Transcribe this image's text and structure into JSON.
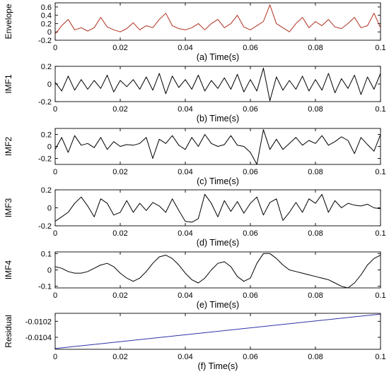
{
  "chart_data": [
    {
      "type": "line",
      "panel": "a",
      "caption": "(a) Time(s)",
      "ylabel": "Envelope",
      "xlim": [
        0,
        0.1
      ],
      "ylim": [
        -0.2,
        0.7
      ],
      "xticks": [
        0,
        0.02,
        0.04,
        0.06,
        0.08,
        0.1
      ],
      "xtick_labels": [
        "0",
        "0.02",
        "0.04",
        "0.06",
        "0.08",
        "0.1"
      ],
      "yticks": [
        -0.2,
        0,
        0.2,
        0.4,
        0.6
      ],
      "ytick_labels": [
        "-0.2",
        "0",
        "0.2",
        "0.4",
        "0.6"
      ],
      "line_color": "#b03020",
      "series": [
        {
          "x": [
            0,
            0.002,
            0.004,
            0.006,
            0.008,
            0.01,
            0.012,
            0.014,
            0.016,
            0.018,
            0.02,
            0.022,
            0.024,
            0.026,
            0.028,
            0.03,
            0.032,
            0.034,
            0.036,
            0.038,
            0.04,
            0.042,
            0.044,
            0.046,
            0.048,
            0.05,
            0.052,
            0.054,
            0.056,
            0.058,
            0.06,
            0.062,
            0.064,
            0.066,
            0.068,
            0.07,
            0.072,
            0.074,
            0.076,
            0.078,
            0.08,
            0.082,
            0.084,
            0.086,
            0.088,
            0.09,
            0.092,
            0.094,
            0.096,
            0.098,
            0.1
          ],
          "y": [
            -0.05,
            0.15,
            0.3,
            0.05,
            0.1,
            0.02,
            0.1,
            0.35,
            0.12,
            0.05,
            0.0,
            0.08,
            0.22,
            0.05,
            0.15,
            0.1,
            0.3,
            0.45,
            0.15,
            0.08,
            0.05,
            0.1,
            0.2,
            0.05,
            0.2,
            0.3,
            0.1,
            0.2,
            0.4,
            0.12,
            0.05,
            0.15,
            0.25,
            0.65,
            0.2,
            0.1,
            0.0,
            0.2,
            0.35,
            0.1,
            0.25,
            0.15,
            0.3,
            0.12,
            0.08,
            0.2,
            0.35,
            0.1,
            0.15,
            0.45,
            0.1
          ]
        }
      ]
    },
    {
      "type": "line",
      "panel": "b",
      "caption": "(b) Time(s)",
      "ylabel": "IMF1",
      "xlim": [
        0,
        0.1
      ],
      "ylim": [
        -0.2,
        0.2
      ],
      "xticks": [
        0,
        0.02,
        0.04,
        0.06,
        0.08,
        0.1
      ],
      "xtick_labels": [
        "0",
        "0.02",
        "0.04",
        "0.06",
        "0.08",
        "0.1"
      ],
      "yticks": [
        -0.2,
        0,
        0.2
      ],
      "ytick_labels": [
        "-0.2",
        "0",
        "0.2"
      ],
      "line_color": "#000000",
      "series": [
        {
          "x": [
            0,
            0.002,
            0.004,
            0.006,
            0.008,
            0.01,
            0.012,
            0.014,
            0.016,
            0.018,
            0.02,
            0.022,
            0.024,
            0.026,
            0.028,
            0.03,
            0.032,
            0.034,
            0.036,
            0.038,
            0.04,
            0.042,
            0.044,
            0.046,
            0.048,
            0.05,
            0.052,
            0.054,
            0.056,
            0.058,
            0.06,
            0.062,
            0.064,
            0.066,
            0.068,
            0.07,
            0.072,
            0.074,
            0.076,
            0.078,
            0.08,
            0.082,
            0.084,
            0.086,
            0.088,
            0.09,
            0.092,
            0.094,
            0.096,
            0.098,
            0.1
          ],
          "y": [
            0.02,
            -0.08,
            0.09,
            -0.07,
            0.05,
            -0.06,
            0.04,
            -0.05,
            0.1,
            -0.09,
            0.04,
            -0.03,
            0.05,
            -0.06,
            0.08,
            -0.07,
            0.12,
            -0.11,
            0.09,
            -0.04,
            0.05,
            -0.06,
            0.1,
            -0.08,
            0.04,
            -0.05,
            0.07,
            -0.06,
            0.11,
            -0.09,
            0.05,
            -0.08,
            0.18,
            -0.19,
            0.08,
            -0.07,
            0.04,
            -0.06,
            0.09,
            -0.08,
            0.05,
            -0.07,
            0.12,
            -0.1,
            0.06,
            -0.05,
            0.1,
            -0.12,
            0.08,
            -0.06,
            0.12
          ]
        }
      ]
    },
    {
      "type": "line",
      "panel": "c",
      "caption": "(c) Time(s)",
      "ylabel": "IMF2",
      "xlim": [
        0,
        0.1
      ],
      "ylim": [
        -0.3,
        0.3
      ],
      "xticks": [
        0,
        0.02,
        0.04,
        0.06,
        0.08,
        0.1
      ],
      "xtick_labels": [
        "0",
        "0.02",
        "0.04",
        "0.06",
        "0.08",
        "0.1"
      ],
      "yticks": [
        -0.2,
        0,
        0.2
      ],
      "ytick_labels": [
        "-0.2",
        "0",
        "0.2"
      ],
      "line_color": "#000000",
      "series": [
        {
          "x": [
            0,
            0.002,
            0.004,
            0.006,
            0.008,
            0.01,
            0.012,
            0.014,
            0.016,
            0.018,
            0.02,
            0.022,
            0.024,
            0.026,
            0.028,
            0.03,
            0.032,
            0.034,
            0.036,
            0.038,
            0.04,
            0.042,
            0.044,
            0.046,
            0.048,
            0.05,
            0.052,
            0.054,
            0.056,
            0.058,
            0.06,
            0.062,
            0.064,
            0.066,
            0.068,
            0.07,
            0.072,
            0.074,
            0.076,
            0.078,
            0.08,
            0.082,
            0.084,
            0.086,
            0.088,
            0.09,
            0.092,
            0.094,
            0.096,
            0.098,
            0.1
          ],
          "y": [
            -0.05,
            0.15,
            -0.1,
            0.18,
            0.02,
            0.05,
            -0.02,
            0.15,
            -0.05,
            0.08,
            0.0,
            0.03,
            0.02,
            0.05,
            0.15,
            -0.2,
            0.12,
            0.05,
            0.18,
            0.02,
            -0.05,
            0.15,
            0.0,
            0.2,
            0.05,
            0.0,
            0.03,
            0.18,
            0.02,
            0.0,
            -0.1,
            -0.3,
            0.28,
            -0.05,
            0.12,
            -0.05,
            0.05,
            0.15,
            0.02,
            0.1,
            0.05,
            0.18,
            0.02,
            0.08,
            0.16,
            0.1,
            -0.12,
            0.15,
            0.03,
            -0.08,
            0.2
          ]
        }
      ]
    },
    {
      "type": "line",
      "panel": "d",
      "caption": "(d) Time(s)",
      "ylabel": "IMF3",
      "xlim": [
        0,
        0.1
      ],
      "ylim": [
        -0.2,
        0.2
      ],
      "xticks": [
        0,
        0.02,
        0.04,
        0.06,
        0.08,
        0.1
      ],
      "xtick_labels": [
        "0",
        "0.02",
        "0.04",
        "0.06",
        "0.08",
        "0.1"
      ],
      "yticks": [
        -0.2,
        0,
        0.2
      ],
      "ytick_labels": [
        "-0.2",
        "0",
        "0.2"
      ],
      "line_color": "#000000",
      "series": [
        {
          "x": [
            0,
            0.002,
            0.004,
            0.006,
            0.008,
            0.01,
            0.012,
            0.014,
            0.016,
            0.018,
            0.02,
            0.022,
            0.024,
            0.026,
            0.028,
            0.03,
            0.032,
            0.034,
            0.036,
            0.038,
            0.04,
            0.042,
            0.044,
            0.046,
            0.048,
            0.05,
            0.052,
            0.054,
            0.056,
            0.058,
            0.06,
            0.062,
            0.064,
            0.066,
            0.068,
            0.07,
            0.072,
            0.074,
            0.076,
            0.078,
            0.08,
            0.082,
            0.084,
            0.086,
            0.088,
            0.09,
            0.092,
            0.094,
            0.096,
            0.098,
            0.1
          ],
          "y": [
            -0.15,
            -0.1,
            -0.05,
            0.05,
            0.12,
            0.02,
            -0.1,
            0.1,
            0.05,
            -0.08,
            -0.05,
            0.08,
            -0.05,
            0.05,
            -0.03,
            0.06,
            0.02,
            -0.05,
            0.1,
            -0.03,
            -0.15,
            -0.16,
            -0.12,
            0.15,
            0.05,
            -0.1,
            0.08,
            -0.04,
            0.07,
            -0.06,
            0.05,
            0.12,
            -0.08,
            0.06,
            0.1,
            -0.14,
            -0.05,
            0.06,
            -0.05,
            0.1,
            0.05,
            0.15,
            -0.05,
            0.08,
            0.0,
            0.05,
            0.03,
            0.02,
            0.04,
            0.0,
            -0.01
          ]
        }
      ]
    },
    {
      "type": "line",
      "panel": "e",
      "caption": "(e) Time(s)",
      "ylabel": "IMF4",
      "xlim": [
        0,
        0.1
      ],
      "ylim": [
        -0.11,
        0.11
      ],
      "xticks": [
        0,
        0.02,
        0.04,
        0.06,
        0.08,
        0.1
      ],
      "xtick_labels": [
        "0",
        "0.02",
        "0.04",
        "0.06",
        "0.08",
        "0.1"
      ],
      "yticks": [
        -0.1,
        0,
        0.1
      ],
      "ytick_labels": [
        "-0.1",
        "0",
        "0.1"
      ],
      "line_color": "#000000",
      "series": [
        {
          "x": [
            0,
            0.002,
            0.004,
            0.006,
            0.008,
            0.01,
            0.012,
            0.014,
            0.016,
            0.018,
            0.02,
            0.022,
            0.024,
            0.026,
            0.028,
            0.03,
            0.032,
            0.034,
            0.036,
            0.038,
            0.04,
            0.042,
            0.044,
            0.046,
            0.048,
            0.05,
            0.052,
            0.054,
            0.056,
            0.058,
            0.06,
            0.062,
            0.064,
            0.066,
            0.068,
            0.07,
            0.072,
            0.074,
            0.076,
            0.078,
            0.08,
            0.082,
            0.084,
            0.086,
            0.088,
            0.09,
            0.092,
            0.094,
            0.096,
            0.098,
            0.1
          ],
          "y": [
            0.02,
            0.01,
            -0.01,
            -0.02,
            -0.02,
            -0.01,
            0.01,
            0.03,
            0.04,
            0.02,
            -0.02,
            -0.05,
            -0.07,
            -0.05,
            -0.01,
            0.04,
            0.08,
            0.09,
            0.07,
            0.03,
            -0.02,
            -0.06,
            -0.08,
            -0.05,
            0.0,
            0.04,
            0.05,
            0.02,
            -0.04,
            -0.07,
            -0.05,
            0.04,
            0.1,
            0.1,
            0.07,
            0.03,
            0.0,
            -0.01,
            -0.02,
            -0.03,
            -0.04,
            -0.05,
            -0.06,
            -0.08,
            -0.1,
            -0.11,
            -0.08,
            -0.03,
            0.03,
            0.07,
            0.09
          ]
        }
      ]
    },
    {
      "type": "line",
      "panel": "f",
      "caption": "(f) Time(s)",
      "ylabel": "Residual",
      "xlim": [
        0,
        0.1
      ],
      "ylim": [
        -0.01055,
        -0.0101
      ],
      "xticks": [
        0,
        0.02,
        0.04,
        0.06,
        0.08,
        0.1
      ],
      "xtick_labels": [
        "0",
        "0.02",
        "0.04",
        "0.06",
        "0.08",
        "0.1"
      ],
      "yticks": [
        -0.0104,
        -0.0102
      ],
      "ytick_labels": [
        "-0.0104",
        "-0.0102"
      ],
      "line_color": "#3030a8",
      "series": [
        {
          "x": [
            0,
            0.1
          ],
          "y": [
            -0.01054,
            -0.01011
          ]
        }
      ]
    }
  ]
}
